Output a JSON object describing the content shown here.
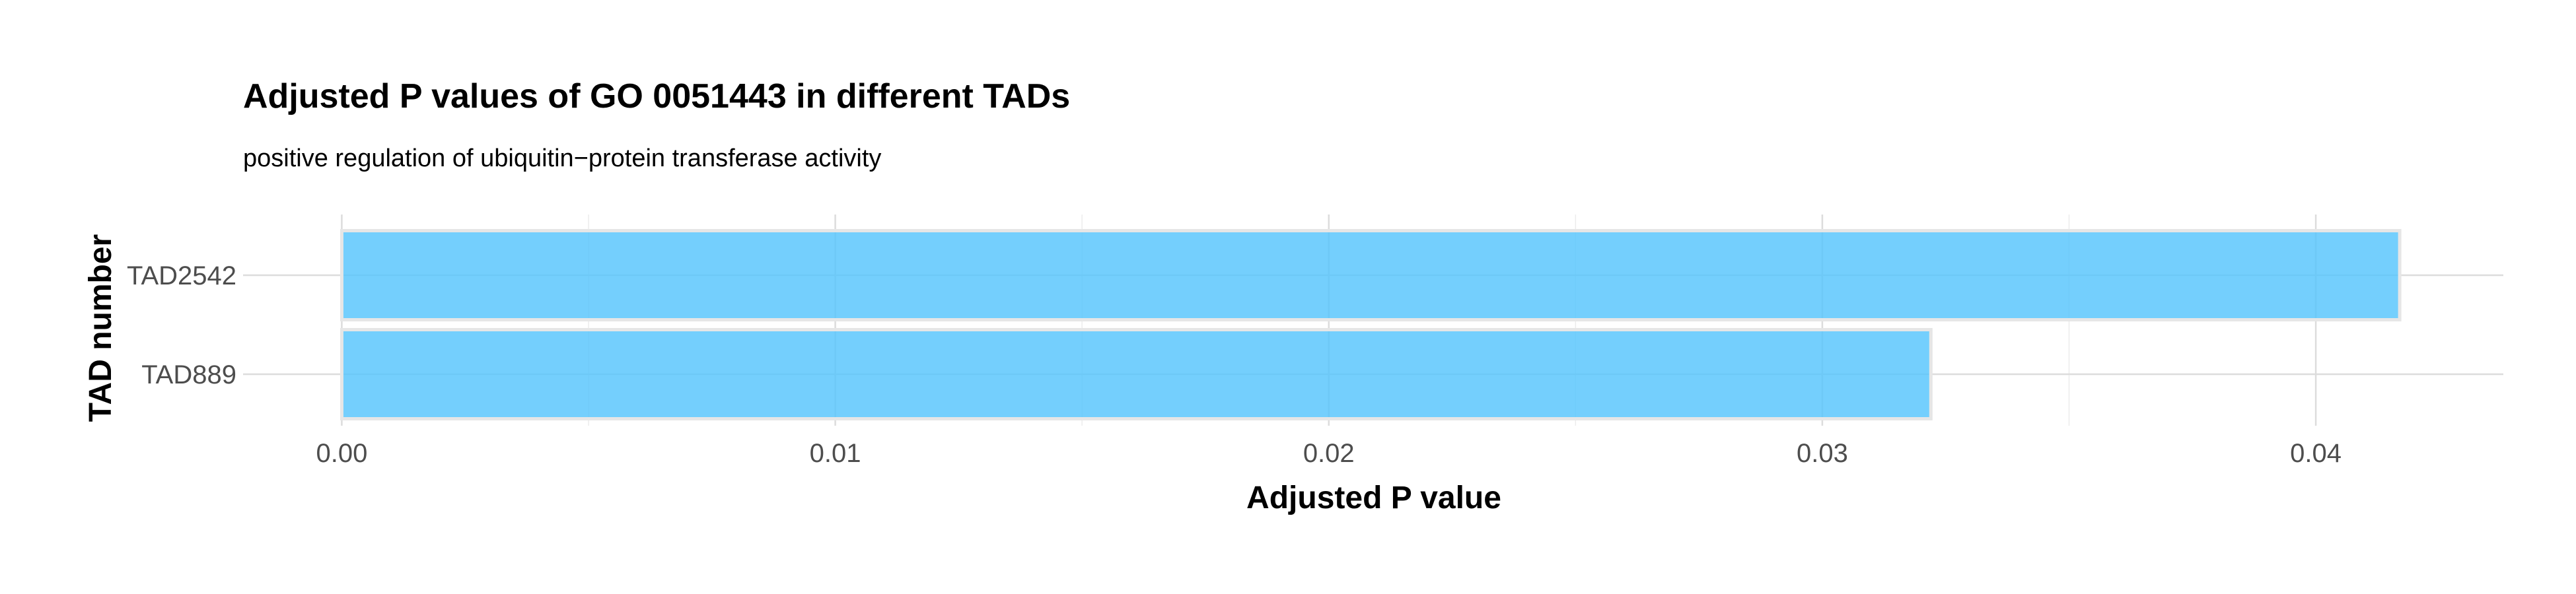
{
  "chart_data": {
    "type": "bar",
    "orientation": "horizontal",
    "title": "Adjusted P values of GO 0051443 in different TADs",
    "subtitle": "positive regulation of ubiquitin−protein transferase activity",
    "xlabel": "Adjusted P value",
    "ylabel": "TAD number",
    "categories": [
      "TAD2542",
      "TAD889"
    ],
    "values": [
      0.0417,
      0.0322
    ],
    "xlim": [
      -0.002,
      0.0438
    ],
    "xticks": [
      0,
      0.01,
      0.02,
      0.03,
      0.04
    ],
    "xtick_labels": [
      "0.00",
      "0.01",
      "0.02",
      "0.03",
      "0.04"
    ],
    "grid": true,
    "legend": "none",
    "bar_color": "#56c5fc"
  }
}
